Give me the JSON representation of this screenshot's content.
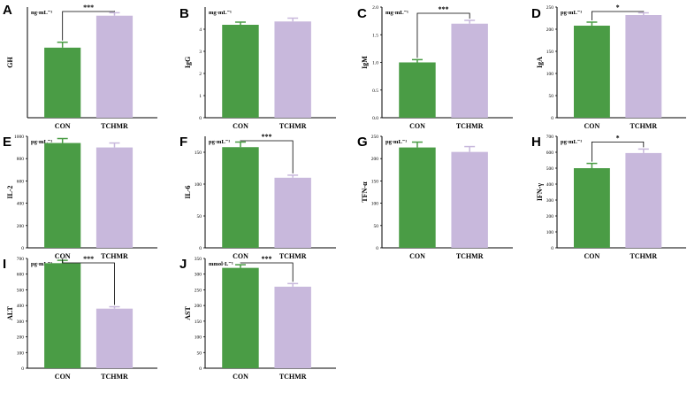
{
  "colors": {
    "con": "#4a9c45",
    "tchmr": "#c8b8dc",
    "axis": "#000000",
    "error": "#4a9c45",
    "error2": "#c8b8dc"
  },
  "chart_data": [
    {
      "id": "A",
      "type": "bar",
      "panel_label": "A",
      "ylabel": "GH",
      "unit": "ng·mL⁻¹",
      "categories": [
        "CON",
        "TCHMR"
      ],
      "values": [
        2.85,
        4.15
      ],
      "errors": [
        0.22,
        0.12
      ],
      "ylim": [
        0,
        4.5
      ],
      "yticks": [],
      "significance": "***"
    },
    {
      "id": "B",
      "type": "bar",
      "panel_label": "B",
      "ylabel": "IgG",
      "unit": "mg·mL⁻¹",
      "categories": [
        "CON",
        "TCHMR"
      ],
      "values": [
        4.2,
        4.35
      ],
      "errors": [
        0.12,
        0.15
      ],
      "ylim": [
        0,
        5
      ],
      "yticks": [
        "0",
        "1",
        "2",
        "3",
        "4"
      ],
      "significance": ""
    },
    {
      "id": "C",
      "type": "bar",
      "panel_label": "C",
      "ylabel": "IgM",
      "unit": "mg·mL⁻¹",
      "categories": [
        "CON",
        "TCHMR"
      ],
      "values": [
        1.0,
        1.7
      ],
      "errors": [
        0.05,
        0.06
      ],
      "ylim": [
        0,
        2.0
      ],
      "yticks": [
        "0.0",
        "0.5",
        "1.0",
        "1.5",
        "2.0"
      ],
      "significance": "***"
    },
    {
      "id": "D",
      "type": "bar",
      "panel_label": "D",
      "ylabel": "IgA",
      "unit": "pg·mL⁻¹",
      "categories": [
        "CON",
        "TCHMR"
      ],
      "values": [
        208,
        232
      ],
      "errors": [
        8,
        5
      ],
      "ylim": [
        0,
        250
      ],
      "yticks": [
        "0",
        "50",
        "100",
        "150",
        "200",
        "250"
      ],
      "significance": "*"
    },
    {
      "id": "E",
      "type": "bar",
      "panel_label": "E",
      "ylabel": "IL-2",
      "unit": "pg·mL⁻¹",
      "categories": [
        "CON",
        "TCHMR"
      ],
      "values": [
        940,
        900
      ],
      "errors": [
        40,
        40
      ],
      "ylim": [
        0,
        1000
      ],
      "yticks": [
        "0",
        "200",
        "400",
        "600",
        "800",
        "1000"
      ],
      "significance": ""
    },
    {
      "id": "F",
      "type": "bar",
      "panel_label": "F",
      "ylabel": "IL-6",
      "unit": "pg·mL⁻¹",
      "categories": [
        "CON",
        "TCHMR"
      ],
      "values": [
        158,
        110
      ],
      "errors": [
        8,
        4
      ],
      "ylim": [
        0,
        175
      ],
      "yticks": [
        "0",
        "50",
        "100",
        "150"
      ],
      "significance": "***"
    },
    {
      "id": "G",
      "type": "bar",
      "panel_label": "G",
      "ylabel": "TFN-α",
      "unit": "pg·mL⁻¹",
      "categories": [
        "CON",
        "TCHMR"
      ],
      "values": [
        225,
        215
      ],
      "errors": [
        12,
        12
      ],
      "ylim": [
        0,
        250
      ],
      "yticks": [
        "0",
        "50",
        "100",
        "150",
        "200",
        "250"
      ],
      "significance": ""
    },
    {
      "id": "H",
      "type": "bar",
      "panel_label": "H",
      "ylabel": "IFN-γ",
      "unit": "pg·mL⁻¹",
      "categories": [
        "CON",
        "TCHMR"
      ],
      "values": [
        500,
        595
      ],
      "errors": [
        30,
        25
      ],
      "ylim": [
        0,
        700
      ],
      "yticks": [
        "0",
        "100",
        "200",
        "300",
        "400",
        "500",
        "600",
        "700"
      ],
      "significance": "*"
    },
    {
      "id": "I",
      "type": "bar",
      "panel_label": "I",
      "ylabel": "ALT",
      "unit": "pg·mL⁻¹",
      "categories": [
        "CON",
        "TCHMR"
      ],
      "values": [
        670,
        380
      ],
      "errors": [
        18,
        12
      ],
      "ylim": [
        0,
        700
      ],
      "yticks": [
        "0",
        "100",
        "200",
        "300",
        "400",
        "500",
        "600",
        "700"
      ],
      "significance": "***"
    },
    {
      "id": "J",
      "type": "bar",
      "panel_label": "J",
      "ylabel": "AST",
      "unit": "mmol·L⁻¹",
      "categories": [
        "CON",
        "TCHMR"
      ],
      "values": [
        320,
        260
      ],
      "errors": [
        10,
        10
      ],
      "ylim": [
        0,
        350
      ],
      "yticks": [
        "0",
        "50",
        "100",
        "150",
        "200",
        "250",
        "300",
        "350"
      ],
      "significance": "***"
    }
  ]
}
